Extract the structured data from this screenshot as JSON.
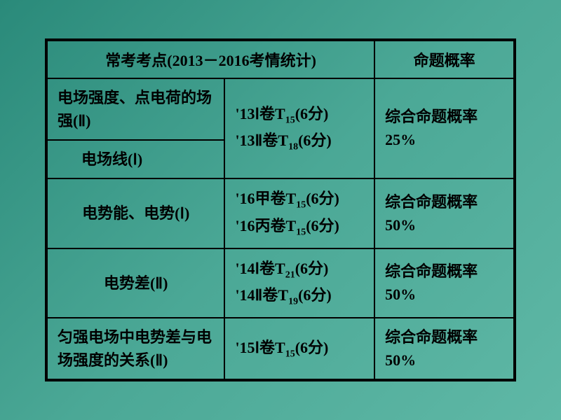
{
  "table": {
    "header": {
      "left": "常考考点(2013－2016考情统计)",
      "right": "命题概率"
    },
    "rows": [
      {
        "topic1": "电场强度、点电荷的场强(Ⅱ)",
        "topic2": "电场线(Ⅰ)",
        "exam_line1_pre": "'13Ⅰ卷T",
        "exam_line1_sub": "15",
        "exam_line1_post": "(6分)",
        "exam_line2_pre": "'13Ⅱ卷T",
        "exam_line2_sub": "18",
        "exam_line2_post": "(6分)",
        "prob_line1": "综合命题概率",
        "prob_line2": "25%"
      },
      {
        "topic": "电势能、电势(Ⅰ)",
        "exam_line1_pre": "'16甲卷T",
        "exam_line1_sub": "15",
        "exam_line1_post": "(6分)",
        "exam_line2_pre": "'16丙卷T",
        "exam_line2_sub": "15",
        "exam_line2_post": "(6分)",
        "prob_line1": "综合命题概率",
        "prob_line2": "50%"
      },
      {
        "topic": "电势差(Ⅱ)",
        "exam_line1_pre": "'14Ⅰ卷T",
        "exam_line1_sub": "21",
        "exam_line1_post": "(6分)",
        "exam_line2_pre": "'14Ⅱ卷T",
        "exam_line2_sub": "19",
        "exam_line2_post": "(6分)",
        "prob_line1": "综合命题概率",
        "prob_line2": "50%"
      },
      {
        "topic": "匀强电场中电势差与电场强度的关系(Ⅱ)",
        "exam_line1_pre": "'15Ⅰ卷T",
        "exam_line1_sub": "15",
        "exam_line1_post": "(6分)",
        "prob_line1": "综合命题概率",
        "prob_line2": "50%"
      }
    ],
    "colors": {
      "border": "#000000",
      "text": "#000000",
      "bg_gradient_start": "#2a8a7a",
      "bg_gradient_end": "#5fb8a6"
    },
    "font_size": 22,
    "sub_font_size": 14
  }
}
